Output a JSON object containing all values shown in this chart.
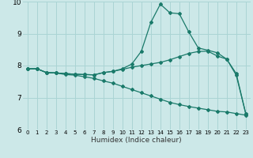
{
  "xlabel": "Humidex (Indice chaleur)",
  "bg_color": "#cce8e8",
  "grid_color": "#aad4d4",
  "line_color": "#1a7a6a",
  "xlim": [
    -0.5,
    23.5
  ],
  "ylim": [
    6,
    10
  ],
  "xticks": [
    0,
    1,
    2,
    3,
    4,
    5,
    6,
    7,
    8,
    9,
    10,
    11,
    12,
    13,
    14,
    15,
    16,
    17,
    18,
    19,
    20,
    21,
    22,
    23
  ],
  "yticks": [
    6,
    7,
    8,
    9,
    10
  ],
  "line1_x": [
    0,
    1,
    2,
    3,
    4,
    5,
    6,
    7,
    8,
    9,
    10,
    11,
    12,
    13,
    14,
    15,
    16,
    17,
    18,
    19,
    20,
    21,
    22,
    23
  ],
  "line1_y": [
    7.9,
    7.9,
    7.78,
    7.77,
    7.75,
    7.73,
    7.72,
    7.71,
    7.78,
    7.82,
    7.88,
    7.95,
    8.0,
    8.05,
    8.1,
    8.18,
    8.28,
    8.38,
    8.44,
    8.45,
    8.3,
    8.2,
    7.75,
    6.5
  ],
  "line2_x": [
    0,
    1,
    2,
    3,
    4,
    5,
    6,
    7,
    8,
    9,
    10,
    11,
    12,
    13,
    14,
    15,
    16,
    17,
    18,
    19,
    20,
    21,
    22,
    23
  ],
  "line2_y": [
    7.9,
    7.9,
    7.78,
    7.77,
    7.75,
    7.73,
    7.72,
    7.71,
    7.78,
    7.82,
    7.9,
    8.05,
    8.45,
    9.35,
    9.92,
    9.65,
    9.62,
    9.05,
    8.55,
    8.48,
    8.4,
    8.2,
    7.7,
    6.5
  ],
  "line3_x": [
    0,
    1,
    2,
    3,
    4,
    5,
    6,
    7,
    8,
    9,
    10,
    11,
    12,
    13,
    14,
    15,
    16,
    17,
    18,
    19,
    20,
    21,
    22,
    23
  ],
  "line3_y": [
    7.9,
    7.9,
    7.78,
    7.77,
    7.72,
    7.7,
    7.65,
    7.6,
    7.52,
    7.45,
    7.35,
    7.25,
    7.15,
    7.05,
    6.95,
    6.85,
    6.78,
    6.72,
    6.67,
    6.62,
    6.57,
    6.55,
    6.5,
    6.45
  ]
}
